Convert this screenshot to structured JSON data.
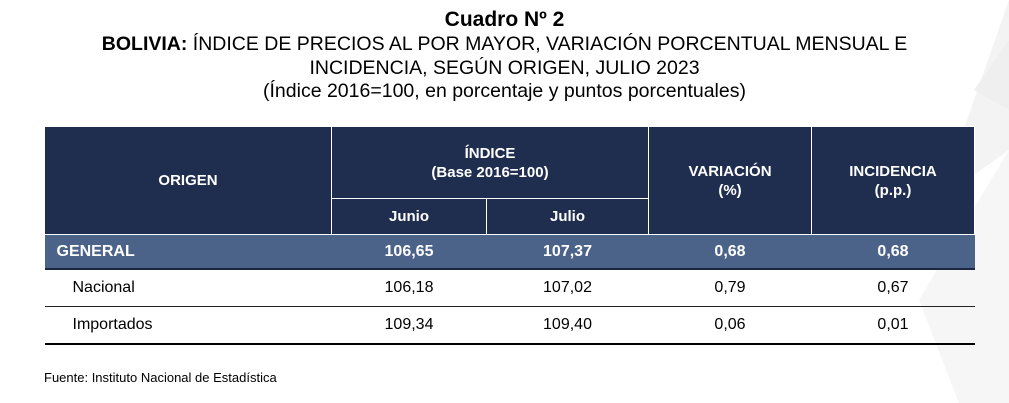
{
  "header": {
    "cuadro": "Cuadro Nº 2",
    "title_bold": "BOLIVIA:",
    "title_rest": " ÍNDICE DE PRECIOS AL POR MAYOR, VARIACIÓN PORCENTUAL MENSUAL E",
    "title_line2": "INCIDENCIA, SEGÚN ORIGEN, JULIO 2023",
    "subtitle": "(Índice 2016=100, en porcentaje y puntos porcentuales)"
  },
  "table": {
    "col_origen": "ORIGEN",
    "col_indice": "ÍNDICE",
    "col_indice_base": "(Base 2016=100)",
    "col_junio": "Junio",
    "col_julio": "Julio",
    "col_variacion": "VARIACIÓN",
    "col_variacion_unit": "(%)",
    "col_incidencia": "INCIDENCIA",
    "col_incidencia_unit": "(p.p.)",
    "rows": [
      {
        "origen": "GENERAL",
        "junio": "106,65",
        "julio": "107,37",
        "variacion": "0,68",
        "incidencia": "0,68"
      },
      {
        "origen": "Nacional",
        "junio": "106,18",
        "julio": "107,02",
        "variacion": "0,79",
        "incidencia": "0,67"
      },
      {
        "origen": "Importados",
        "junio": "109,34",
        "julio": "109,40",
        "variacion": "0,06",
        "incidencia": "0,01"
      }
    ]
  },
  "footer": {
    "fuente": "Fuente: Instituto Nacional de Estadística"
  },
  "colors": {
    "header_bg": "#1f2e4f",
    "general_row_bg": "#4b6289"
  }
}
